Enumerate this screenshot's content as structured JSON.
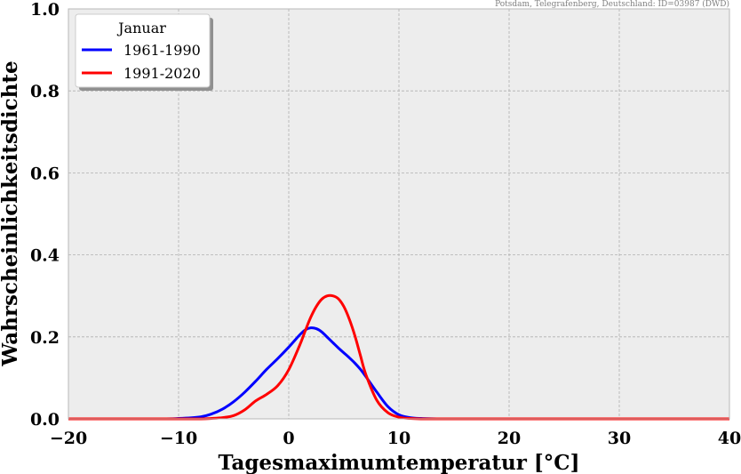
{
  "source_note": "Potsdam, Telegrafenberg, Deutschland: ID=03987 (DWD)",
  "chart_data": {
    "type": "line",
    "title": "",
    "xlabel": "Tagesmaximumtemperatur [°C]",
    "ylabel": "Wahrscheinlichkeitsdichte",
    "xlim": [
      -20,
      40
    ],
    "ylim": [
      0,
      1.0
    ],
    "xticks": [
      -20,
      -10,
      0,
      10,
      20,
      30,
      40
    ],
    "xtick_labels": [
      "−20",
      "−10",
      "0",
      "10",
      "20",
      "30",
      "40"
    ],
    "yticks": [
      0.0,
      0.2,
      0.4,
      0.6,
      0.8,
      1.0
    ],
    "ytick_labels": [
      "0.0",
      "0.2",
      "0.4",
      "0.6",
      "0.8",
      "1.0"
    ],
    "grid": true,
    "legend": {
      "title": "Januar",
      "placement": "top-left"
    },
    "x": [
      -20,
      -12,
      -10,
      -8,
      -7,
      -6,
      -5,
      -4,
      -3,
      -2,
      -1,
      0,
      1,
      1.5,
      2,
      2.5,
      3,
      3.5,
      4,
      4.5,
      5,
      5.5,
      6,
      6.5,
      7,
      8,
      9,
      10,
      11,
      12,
      14,
      20,
      30,
      40
    ],
    "series": [
      {
        "name": "1961-1990",
        "color": "#0000ff",
        "values": [
          0,
          0,
          0.001,
          0.005,
          0.012,
          0.024,
          0.042,
          0.065,
          0.092,
          0.121,
          0.147,
          0.175,
          0.205,
          0.217,
          0.222,
          0.22,
          0.212,
          0.199,
          0.186,
          0.173,
          0.161,
          0.149,
          0.136,
          0.121,
          0.103,
          0.065,
          0.03,
          0.01,
          0.003,
          0.001,
          0,
          0,
          0,
          0
        ]
      },
      {
        "name": "1991-2020",
        "color": "#ff0000",
        "values": [
          0,
          0,
          0,
          0,
          0.001,
          0.003,
          0.008,
          0.022,
          0.044,
          0.06,
          0.081,
          0.12,
          0.18,
          0.215,
          0.248,
          0.274,
          0.292,
          0.3,
          0.3,
          0.293,
          0.274,
          0.243,
          0.203,
          0.155,
          0.108,
          0.045,
          0.015,
          0.004,
          0.001,
          0,
          0,
          0,
          0,
          0
        ]
      }
    ]
  }
}
